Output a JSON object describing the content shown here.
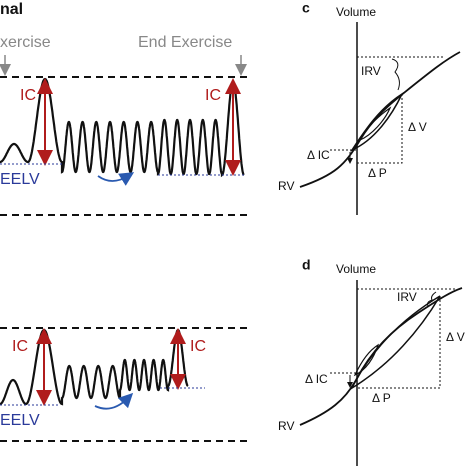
{
  "panel_a": {
    "label": "nal",
    "start": "xercise",
    "end": "End Exercise",
    "ic_left": "IC",
    "ic_right": "IC",
    "eelv": "EELV"
  },
  "panel_b": {
    "ic_left": "IC",
    "ic_right": "IC",
    "eelv": "EELV"
  },
  "panel_c": {
    "label": "c",
    "axis": "Volume",
    "irv": "IRV",
    "dv": "Δ V",
    "dic": "Δ IC",
    "dp": "Δ P",
    "rv": "RV"
  },
  "panel_d": {
    "label": "d",
    "axis": "Volume",
    "irv": "IRV",
    "dv": "Δ V",
    "dic": "Δ IC",
    "dp": "Δ P",
    "rv": "RV"
  }
}
